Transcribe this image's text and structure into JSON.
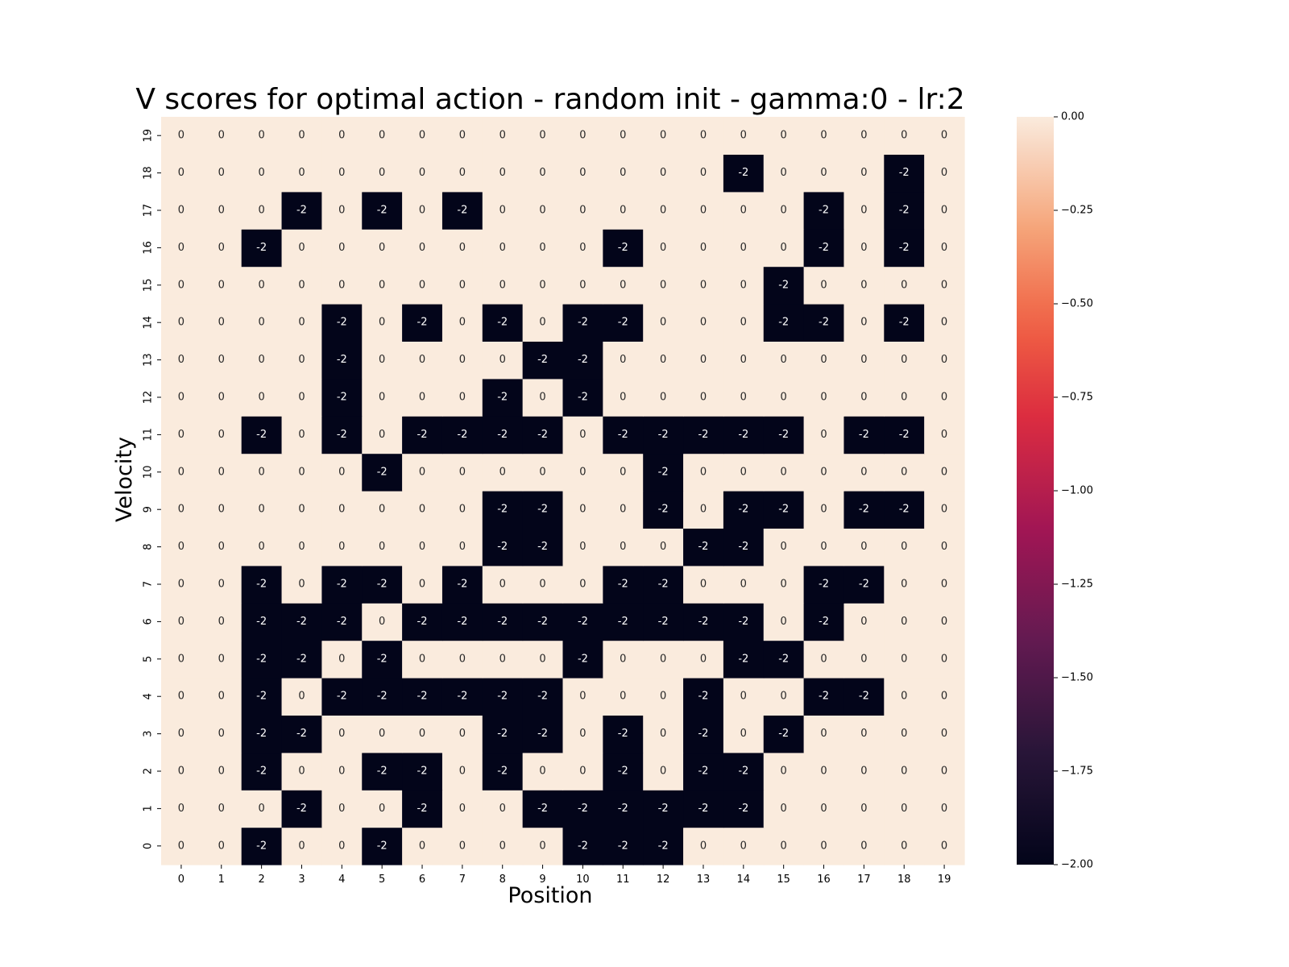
{
  "chart_data": {
    "type": "heatmap",
    "title": "V scores for optimal action - random init - gamma:0 - lr:2",
    "xlabel": "Position",
    "ylabel": "Velocity",
    "x_categories": [
      "0",
      "1",
      "2",
      "3",
      "4",
      "5",
      "6",
      "7",
      "8",
      "9",
      "10",
      "11",
      "12",
      "13",
      "14",
      "15",
      "16",
      "17",
      "18",
      "19"
    ],
    "y_categories": [
      "0",
      "1",
      "2",
      "3",
      "4",
      "5",
      "6",
      "7",
      "8",
      "9",
      "10",
      "11",
      "12",
      "13",
      "14",
      "15",
      "16",
      "17",
      "18",
      "19"
    ],
    "y_order": "bottom-to-top",
    "values": [
      [
        0,
        0,
        -2,
        0,
        0,
        -2,
        0,
        0,
        0,
        0,
        -2,
        -2,
        -2,
        0,
        0,
        0,
        0,
        0,
        0,
        0
      ],
      [
        0,
        0,
        0,
        -2,
        0,
        0,
        -2,
        0,
        0,
        -2,
        -2,
        -2,
        -2,
        -2,
        -2,
        0,
        0,
        0,
        0,
        0
      ],
      [
        0,
        0,
        -2,
        0,
        0,
        -2,
        -2,
        0,
        -2,
        0,
        0,
        -2,
        0,
        -2,
        -2,
        0,
        0,
        0,
        0,
        0
      ],
      [
        0,
        0,
        -2,
        -2,
        0,
        0,
        0,
        0,
        -2,
        -2,
        0,
        -2,
        0,
        -2,
        0,
        -2,
        0,
        0,
        0,
        0
      ],
      [
        0,
        0,
        -2,
        0,
        -2,
        -2,
        -2,
        -2,
        -2,
        -2,
        0,
        0,
        0,
        -2,
        0,
        0,
        -2,
        -2,
        0,
        0
      ],
      [
        0,
        0,
        -2,
        -2,
        0,
        -2,
        0,
        0,
        0,
        0,
        -2,
        0,
        0,
        0,
        -2,
        -2,
        0,
        0,
        0,
        0
      ],
      [
        0,
        0,
        -2,
        -2,
        -2,
        0,
        -2,
        -2,
        -2,
        -2,
        -2,
        -2,
        -2,
        -2,
        -2,
        0,
        -2,
        0,
        0,
        0
      ],
      [
        0,
        0,
        -2,
        0,
        -2,
        -2,
        0,
        -2,
        0,
        0,
        0,
        -2,
        -2,
        0,
        0,
        0,
        -2,
        -2,
        0,
        0
      ],
      [
        0,
        0,
        0,
        0,
        0,
        0,
        0,
        0,
        -2,
        -2,
        0,
        0,
        0,
        -2,
        -2,
        0,
        0,
        0,
        0,
        0
      ],
      [
        0,
        0,
        0,
        0,
        0,
        0,
        0,
        0,
        -2,
        -2,
        0,
        0,
        -2,
        0,
        -2,
        -2,
        0,
        -2,
        -2,
        0
      ],
      [
        0,
        0,
        0,
        0,
        0,
        -2,
        0,
        0,
        0,
        0,
        0,
        0,
        -2,
        0,
        0,
        0,
        0,
        0,
        0,
        0
      ],
      [
        0,
        0,
        -2,
        0,
        -2,
        0,
        -2,
        -2,
        -2,
        -2,
        0,
        -2,
        -2,
        -2,
        -2,
        -2,
        0,
        -2,
        -2,
        0
      ],
      [
        0,
        0,
        0,
        0,
        -2,
        0,
        0,
        0,
        -2,
        0,
        -2,
        0,
        0,
        0,
        0,
        0,
        0,
        0,
        0,
        0
      ],
      [
        0,
        0,
        0,
        0,
        -2,
        0,
        0,
        0,
        0,
        -2,
        -2,
        0,
        0,
        0,
        0,
        0,
        0,
        0,
        0,
        0
      ],
      [
        0,
        0,
        0,
        0,
        -2,
        0,
        -2,
        0,
        -2,
        0,
        -2,
        -2,
        0,
        0,
        0,
        -2,
        -2,
        0,
        -2,
        0
      ],
      [
        0,
        0,
        0,
        0,
        0,
        0,
        0,
        0,
        0,
        0,
        0,
        0,
        0,
        0,
        0,
        -2,
        0,
        0,
        0,
        0
      ],
      [
        0,
        0,
        -2,
        0,
        0,
        0,
        0,
        0,
        0,
        0,
        0,
        -2,
        0,
        0,
        0,
        0,
        -2,
        0,
        -2,
        0
      ],
      [
        0,
        0,
        0,
        -2,
        0,
        -2,
        0,
        -2,
        0,
        0,
        0,
        0,
        0,
        0,
        0,
        0,
        -2,
        0,
        -2,
        0
      ],
      [
        0,
        0,
        0,
        0,
        0,
        0,
        0,
        0,
        0,
        0,
        0,
        0,
        0,
        0,
        -2,
        0,
        0,
        0,
        -2,
        0
      ],
      [
        0,
        0,
        0,
        0,
        0,
        0,
        0,
        0,
        0,
        0,
        0,
        0,
        0,
        0,
        0,
        0,
        0,
        0,
        0,
        0
      ]
    ],
    "vmin": -2.0,
    "vmax": 0.0,
    "colorbar": {
      "ticks": [
        0,
        -0.25,
        -0.5,
        -0.75,
        -1.0,
        -1.25,
        -1.5,
        -1.75,
        -2.0
      ],
      "tick_labels": [
        "0.00",
        "−0.25",
        "−0.50",
        "−0.75",
        "−1.00",
        "−1.25",
        "−1.50",
        "−1.75",
        "−2.00"
      ],
      "colormap": "rocket",
      "low_color": "#03051a",
      "high_color": "#faebdd"
    },
    "annotations": true,
    "grid": false
  }
}
